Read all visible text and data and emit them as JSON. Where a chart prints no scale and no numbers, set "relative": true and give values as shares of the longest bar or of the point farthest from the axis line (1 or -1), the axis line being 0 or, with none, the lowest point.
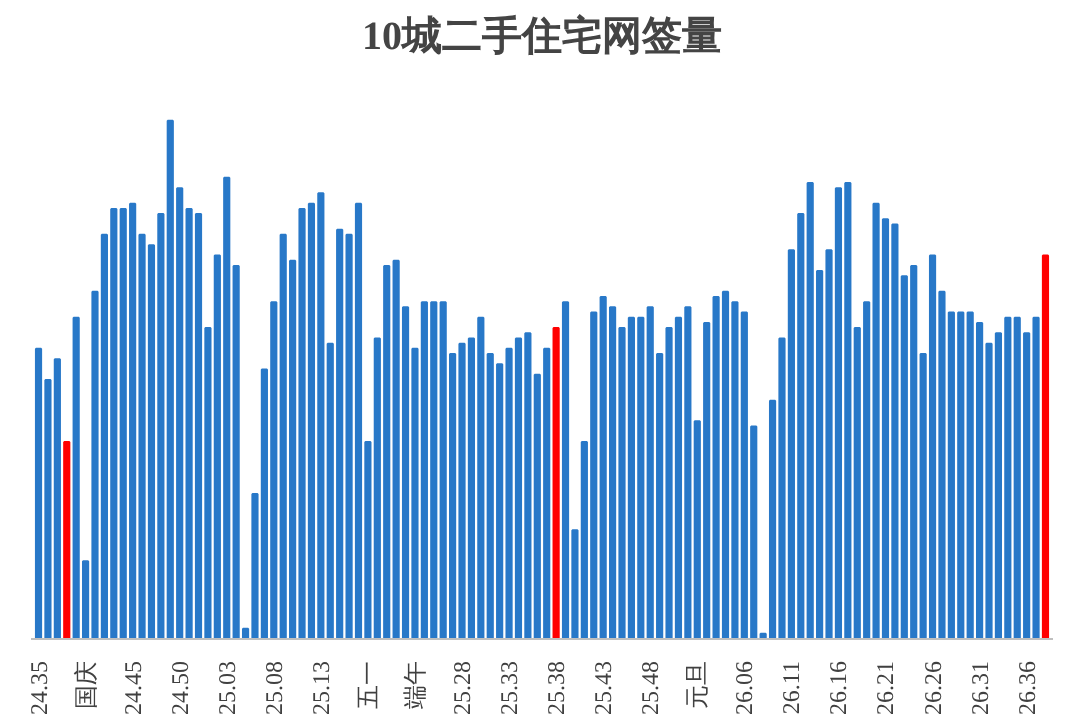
{
  "chart_data": {
    "type": "bar",
    "title": "10城二手住宅网签量",
    "relative": true,
    "grid": false,
    "categories": [
      "24.35",
      null,
      null,
      null,
      null,
      "国庆",
      null,
      null,
      null,
      null,
      "24.45",
      null,
      null,
      null,
      null,
      "24.50",
      null,
      null,
      null,
      null,
      "25.03",
      null,
      null,
      null,
      null,
      "25.08",
      null,
      null,
      null,
      null,
      "25.13",
      null,
      null,
      null,
      null,
      "五一",
      null,
      null,
      null,
      null,
      "端午",
      null,
      null,
      null,
      null,
      "25.28",
      null,
      null,
      null,
      null,
      "25.33",
      null,
      null,
      null,
      null,
      "25.38",
      null,
      null,
      null,
      null,
      "25.43",
      null,
      null,
      null,
      null,
      "25.48",
      null,
      null,
      null,
      null,
      "元旦",
      null,
      null,
      null,
      null,
      "26.06",
      null,
      null,
      null,
      null,
      "26.11",
      null,
      null,
      null,
      null,
      "26.16",
      null,
      null,
      null,
      null,
      "26.21",
      null,
      null,
      null,
      null,
      "26.26",
      null,
      null,
      null,
      null,
      "26.31",
      null,
      null,
      null,
      null,
      "26.36",
      null,
      null
    ],
    "values": [
      0.56,
      0.5,
      0.54,
      0.38,
      0.62,
      0.15,
      0.67,
      0.78,
      0.83,
      0.83,
      0.84,
      0.78,
      0.76,
      0.82,
      1,
      0.87,
      0.83,
      0.82,
      0.6,
      0.74,
      0.89,
      0.72,
      0.02,
      0.28,
      0.52,
      0.65,
      0.78,
      0.73,
      0.83,
      0.84,
      0.86,
      0.57,
      0.79,
      0.78,
      0.84,
      0.38,
      0.58,
      0.72,
      0.73,
      0.64,
      0.56,
      0.65,
      0.65,
      0.65,
      0.55,
      0.57,
      0.58,
      0.62,
      0.55,
      0.53,
      0.56,
      0.58,
      0.59,
      0.51,
      0.56,
      0.6,
      0.65,
      0.21,
      0.38,
      0.63,
      0.66,
      0.64,
      0.6,
      0.62,
      0.62,
      0.64,
      0.55,
      0.6,
      0.62,
      0.64,
      0.42,
      0.61,
      0.66,
      0.67,
      0.65,
      0.63,
      0.41,
      0.01,
      0.46,
      0.58,
      0.75,
      0.82,
      0.88,
      0.71,
      0.75,
      0.87,
      0.88,
      0.6,
      0.65,
      0.84,
      0.81,
      0.8,
      0.7,
      0.72,
      0.55,
      0.74,
      0.67,
      0.63,
      0.63,
      0.63,
      0.61,
      0.57,
      0.59,
      0.62,
      0.62,
      0.59,
      0.62,
      0.74
    ],
    "colors": [
      "#2878c8",
      "#2878c8",
      "#2878c8",
      "#ff0000",
      "#2878c8",
      "#2878c8",
      "#2878c8",
      "#2878c8",
      "#2878c8",
      "#2878c8",
      "#2878c8",
      "#2878c8",
      "#2878c8",
      "#2878c8",
      "#2878c8",
      "#2878c8",
      "#2878c8",
      "#2878c8",
      "#2878c8",
      "#2878c8",
      "#2878c8",
      "#2878c8",
      "#2878c8",
      "#2878c8",
      "#2878c8",
      "#2878c8",
      "#2878c8",
      "#2878c8",
      "#2878c8",
      "#2878c8",
      "#2878c8",
      "#2878c8",
      "#2878c8",
      "#2878c8",
      "#2878c8",
      "#2878c8",
      "#2878c8",
      "#2878c8",
      "#2878c8",
      "#2878c8",
      "#2878c8",
      "#2878c8",
      "#2878c8",
      "#2878c8",
      "#2878c8",
      "#2878c8",
      "#2878c8",
      "#2878c8",
      "#2878c8",
      "#2878c8",
      "#2878c8",
      "#2878c8",
      "#2878c8",
      "#2878c8",
      "#2878c8",
      "#ff0000",
      "#2878c8",
      "#2878c8",
      "#2878c8",
      "#2878c8",
      "#2878c8",
      "#2878c8",
      "#2878c8",
      "#2878c8",
      "#2878c8",
      "#2878c8",
      "#2878c8",
      "#2878c8",
      "#2878c8",
      "#2878c8",
      "#2878c8",
      "#2878c8",
      "#2878c8",
      "#2878c8",
      "#2878c8",
      "#2878c8",
      "#2878c8",
      "#2878c8",
      "#2878c8",
      "#2878c8",
      "#2878c8",
      "#2878c8",
      "#2878c8",
      "#2878c8",
      "#2878c8",
      "#2878c8",
      "#2878c8",
      "#2878c8",
      "#2878c8",
      "#2878c8",
      "#2878c8",
      "#2878c8",
      "#2878c8",
      "#2878c8",
      "#2878c8",
      "#2878c8",
      "#2878c8",
      "#2878c8",
      "#2878c8",
      "#2878c8",
      "#2878c8",
      "#2878c8",
      "#2878c8",
      "#2878c8",
      "#2878c8",
      "#2878c8",
      "#2878c8",
      "#ff0000"
    ]
  }
}
